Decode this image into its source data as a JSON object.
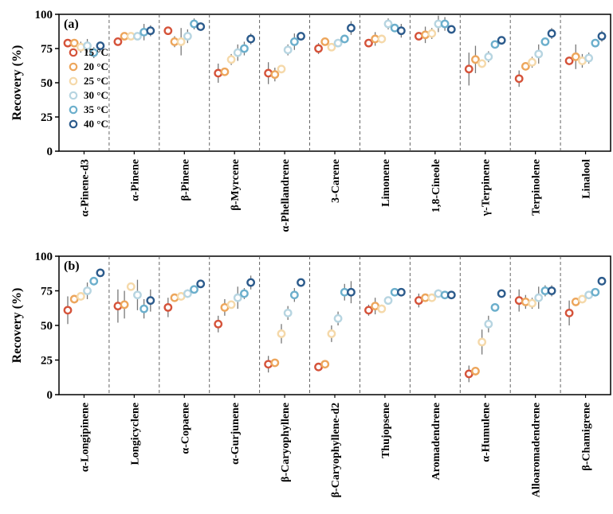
{
  "series_colors": {
    "15 °C": "#d5533a",
    "20 °C": "#eda65c",
    "25 °C": "#f5d9aa",
    "30 °C": "#b7d5e1",
    "35 °C": "#6cafcc",
    "40 °C": "#2c5b8c"
  },
  "chart_data": [
    {
      "panel_label": "(a)",
      "type": "scatter",
      "ylabel": "Recovery (%)",
      "ylim": [
        0,
        100
      ],
      "yticks": [
        0,
        25,
        50,
        75,
        100
      ],
      "legend": {
        "placement": "left",
        "entries": [
          "15 °C",
          "20 °C",
          "25 °C",
          "30 °C",
          "35 °C",
          "40 °C"
        ]
      },
      "categories": [
        "α-Pinene-d3",
        "α-Pinene",
        "β-Pinene",
        "β-Myrcene",
        "α-Phellandrene",
        "3-Carene",
        "Limonene",
        "1,8-Cineole",
        "γ-Terpinene",
        "Terpinolene",
        "Linalool"
      ],
      "series": [
        {
          "name": "15 °C",
          "values": [
            79,
            80,
            88,
            57,
            57,
            75,
            79,
            84,
            60,
            53,
            66
          ],
          "errors": [
            2,
            2,
            2,
            7,
            8,
            4,
            3,
            3,
            12,
            6,
            3
          ]
        },
        {
          "name": "20 °C",
          "values": [
            79,
            84,
            80,
            58,
            56,
            80,
            82,
            85,
            67,
            62,
            69
          ],
          "errors": [
            2,
            1,
            4,
            2,
            5,
            2,
            5,
            6,
            10,
            3,
            9
          ]
        },
        {
          "name": "25 °C",
          "values": [
            76,
            84,
            80,
            67,
            60,
            76,
            82,
            86,
            64,
            65,
            66
          ],
          "errors": [
            4,
            1,
            10,
            4,
            2,
            3,
            3,
            4,
            3,
            4,
            5
          ]
        },
        {
          "name": "30 °C",
          "values": [
            77,
            84,
            84,
            72,
            74,
            79,
            93,
            93,
            69,
            71,
            68
          ],
          "errors": [
            5,
            1,
            5,
            6,
            4,
            3,
            4,
            6,
            4,
            7,
            4
          ]
        },
        {
          "name": "35 °C",
          "values": [
            72,
            87,
            93,
            75,
            80,
            82,
            90,
            93,
            78,
            80,
            79
          ],
          "errors": [
            4,
            6,
            4,
            5,
            6,
            3,
            3,
            5,
            3,
            3,
            3
          ]
        },
        {
          "name": "40 °C",
          "values": [
            77,
            88,
            91,
            82,
            84,
            90,
            88,
            89,
            81,
            86,
            84
          ],
          "errors": [
            3,
            4,
            3,
            4,
            3,
            5,
            5,
            2,
            3,
            4,
            4
          ]
        }
      ]
    },
    {
      "panel_label": "(b)",
      "type": "scatter",
      "ylabel": "Recovery (%)",
      "ylim": [
        0,
        100
      ],
      "yticks": [
        0,
        25,
        50,
        75,
        100
      ],
      "categories": [
        "α-Longipinene",
        "Longicyclene",
        "α-Copaene",
        "α-Gurjunene",
        "β-Caryophyllene",
        "β-Caryophyllene-d2",
        "Thujopsene",
        "Aromadendrene",
        "α-Humulene",
        "Alloaromadendrene",
        "β-Chamigrene"
      ],
      "series": [
        {
          "name": "15 °C",
          "values": [
            61,
            64,
            63,
            51,
            22,
            20,
            61,
            68,
            15,
            68,
            59
          ],
          "errors": [
            10,
            12,
            7,
            6,
            6,
            3,
            4,
            5,
            6,
            8,
            9
          ]
        },
        {
          "name": "20 °C",
          "values": [
            69,
            65,
            70,
            63,
            23,
            22,
            64,
            70,
            17,
            67,
            67
          ],
          "errors": [
            3,
            10,
            3,
            6,
            2,
            3,
            6,
            3,
            3,
            5,
            1
          ]
        },
        {
          "name": "25 °C",
          "values": [
            71,
            78,
            71,
            65,
            44,
            44,
            62,
            70,
            38,
            66,
            69
          ],
          "errors": [
            2,
            2,
            2,
            2,
            7,
            6,
            3,
            2,
            9,
            4,
            2
          ]
        },
        {
          "name": "30 °C",
          "values": [
            75,
            72,
            73,
            70,
            59,
            55,
            68,
            73,
            51,
            70,
            72
          ],
          "errors": [
            6,
            11,
            3,
            8,
            5,
            5,
            3,
            3,
            6,
            8,
            3
          ]
        },
        {
          "name": "35 °C",
          "values": [
            82,
            62,
            76,
            73,
            72,
            74,
            74,
            72,
            63,
            75,
            74
          ],
          "errors": [
            3,
            7,
            3,
            4,
            5,
            6,
            2,
            2,
            2,
            4,
            3
          ]
        },
        {
          "name": "40 °C",
          "values": [
            88,
            68,
            80,
            81,
            81,
            74,
            74,
            72,
            73,
            75,
            82
          ],
          "errors": [
            3,
            8,
            2,
            5,
            2,
            8,
            2,
            2,
            2,
            4,
            3
          ]
        }
      ]
    }
  ]
}
